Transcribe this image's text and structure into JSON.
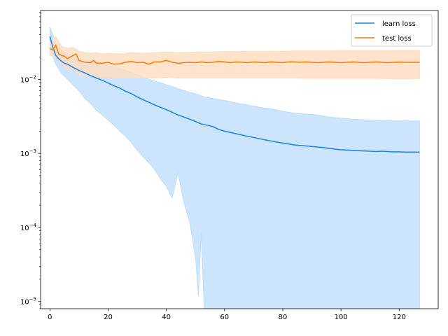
{
  "chart_data": {
    "type": "line",
    "xscale": "linear",
    "yscale": "log",
    "xlim": [
      -3.2,
      133.4
    ],
    "ylim": [
      8e-06,
      0.085
    ],
    "xticks": [
      0,
      20,
      40,
      60,
      80,
      100,
      120
    ],
    "yticks": [
      {
        "value": 1e-05,
        "label_base": "10",
        "label_exp": "−5"
      },
      {
        "value": 0.0001,
        "label_base": "10",
        "label_exp": "−4"
      },
      {
        "value": 0.001,
        "label_base": "10",
        "label_exp": "−3"
      },
      {
        "value": 0.01,
        "label_base": "10",
        "label_exp": "−2"
      }
    ],
    "grid": false,
    "legend": {
      "position": "upper-right"
    },
    "series": [
      {
        "name": "learn loss",
        "color": "#1f88e6",
        "band_color": "#bfdefc",
        "points": [
          [
            0,
            0.038
          ],
          [
            1,
            0.027
          ],
          [
            2,
            0.021
          ],
          [
            3,
            0.019
          ],
          [
            4,
            0.0175
          ],
          [
            5,
            0.0165
          ],
          [
            6,
            0.016
          ],
          [
            8,
            0.0145
          ],
          [
            10,
            0.0132
          ],
          [
            12,
            0.0122
          ],
          [
            14,
            0.0112
          ],
          [
            16,
            0.0104
          ],
          [
            18,
            0.0097
          ],
          [
            20,
            0.0089
          ],
          [
            22,
            0.0082
          ],
          [
            24,
            0.0076
          ],
          [
            26,
            0.0069
          ],
          [
            28,
            0.0064
          ],
          [
            30,
            0.0058
          ],
          [
            32,
            0.0053
          ],
          [
            34,
            0.0049
          ],
          [
            36,
            0.0045
          ],
          [
            38,
            0.0042
          ],
          [
            40,
            0.0039
          ],
          [
            42,
            0.0036
          ],
          [
            44,
            0.0033
          ],
          [
            46,
            0.0031
          ],
          [
            48,
            0.0029
          ],
          [
            50,
            0.0027
          ],
          [
            52,
            0.0025
          ],
          [
            54,
            0.0024
          ],
          [
            56,
            0.0023
          ],
          [
            58,
            0.0021
          ],
          [
            60,
            0.002
          ],
          [
            62,
            0.00192
          ],
          [
            64,
            0.00184
          ],
          [
            66,
            0.00177
          ],
          [
            68,
            0.0017
          ],
          [
            70,
            0.00164
          ],
          [
            72,
            0.00158
          ],
          [
            74,
            0.00152
          ],
          [
            76,
            0.00147
          ],
          [
            78,
            0.00142
          ],
          [
            80,
            0.00138
          ],
          [
            82,
            0.00134
          ],
          [
            84,
            0.0013
          ],
          [
            86,
            0.00128
          ],
          [
            88,
            0.00126
          ],
          [
            90,
            0.00124
          ],
          [
            92,
            0.00122
          ],
          [
            94,
            0.0012
          ],
          [
            96,
            0.00117
          ],
          [
            98,
            0.00114
          ],
          [
            100,
            0.00112
          ],
          [
            102,
            0.00111
          ],
          [
            104,
            0.0011
          ],
          [
            106,
            0.00109
          ],
          [
            108,
            0.00108
          ],
          [
            110,
            0.00107
          ],
          [
            112,
            0.00106
          ],
          [
            114,
            0.00107
          ],
          [
            116,
            0.00106
          ],
          [
            118,
            0.00105
          ],
          [
            120,
            0.00105
          ],
          [
            122,
            0.00104
          ],
          [
            124,
            0.00104
          ],
          [
            126,
            0.00104
          ],
          [
            127,
            0.00104
          ]
        ],
        "band": [
          [
            0,
            0.051,
            0.026
          ],
          [
            2,
            0.031,
            0.016
          ],
          [
            4,
            0.025,
            0.012
          ],
          [
            6,
            0.022,
            0.01
          ],
          [
            8,
            0.02,
            0.0083
          ],
          [
            10,
            0.019,
            0.007
          ],
          [
            12,
            0.0185,
            0.0055
          ],
          [
            14,
            0.018,
            0.0047
          ],
          [
            16,
            0.0175,
            0.0038
          ],
          [
            18,
            0.0165,
            0.0033
          ],
          [
            20,
            0.0155,
            0.0028
          ],
          [
            22,
            0.0147,
            0.0024
          ],
          [
            24,
            0.014,
            0.002
          ],
          [
            26,
            0.0132,
            0.0017
          ],
          [
            28,
            0.0124,
            0.0014
          ],
          [
            30,
            0.0115,
            0.0011
          ],
          [
            32,
            0.0107,
            0.0009
          ],
          [
            34,
            0.01,
            0.00075
          ],
          [
            36,
            0.0095,
            0.0006
          ],
          [
            38,
            0.009,
            0.00045
          ],
          [
            40,
            0.0085,
            0.00036
          ],
          [
            42,
            0.008,
            0.00025
          ],
          [
            44,
            0.0075,
            0.00055
          ],
          [
            46,
            0.0071,
            0.00022
          ],
          [
            48,
            0.0067,
            0.00012
          ],
          [
            50,
            0.0064,
            4e-05
          ],
          [
            51,
            0.0062,
            1.2e-05
          ],
          [
            52,
            0.006,
            8.5e-05
          ],
          [
            53,
            0.0058,
            8e-06
          ],
          [
            56,
            0.0055,
            8e-06
          ],
          [
            60,
            0.0052,
            8e-06
          ],
          [
            64,
            0.0048,
            8e-06
          ],
          [
            68,
            0.0045,
            8e-06
          ],
          [
            72,
            0.0042,
            8e-06
          ],
          [
            76,
            0.004,
            8e-06
          ],
          [
            80,
            0.0037,
            8e-06
          ],
          [
            84,
            0.0035,
            8e-06
          ],
          [
            88,
            0.0034,
            8e-06
          ],
          [
            92,
            0.0033,
            8e-06
          ],
          [
            96,
            0.0031,
            8e-06
          ],
          [
            100,
            0.003,
            8e-06
          ],
          [
            104,
            0.0029,
            8e-06
          ],
          [
            108,
            0.00285,
            8e-06
          ],
          [
            112,
            0.0028,
            8e-06
          ],
          [
            116,
            0.00278,
            8e-06
          ],
          [
            120,
            0.00276,
            8e-06
          ],
          [
            124,
            0.00275,
            8e-06
          ],
          [
            127,
            0.00275,
            8e-06
          ]
        ]
      },
      {
        "name": "test loss",
        "color": "#ff7f0e",
        "band_color": "#ffdcbe",
        "points": [
          [
            0,
            0.026
          ],
          [
            1,
            0.025
          ],
          [
            2,
            0.029
          ],
          [
            3,
            0.022
          ],
          [
            4,
            0.021
          ],
          [
            5,
            0.0205
          ],
          [
            6,
            0.019
          ],
          [
            7,
            0.02
          ],
          [
            8,
            0.021
          ],
          [
            9,
            0.022
          ],
          [
            10,
            0.018
          ],
          [
            11,
            0.0175
          ],
          [
            12,
            0.017
          ],
          [
            14,
            0.0168
          ],
          [
            15,
            0.018
          ],
          [
            16,
            0.0165
          ],
          [
            18,
            0.0165
          ],
          [
            20,
            0.017
          ],
          [
            22,
            0.016
          ],
          [
            24,
            0.0162
          ],
          [
            26,
            0.017
          ],
          [
            28,
            0.0175
          ],
          [
            30,
            0.0168
          ],
          [
            32,
            0.017
          ],
          [
            34,
            0.016
          ],
          [
            36,
            0.0172
          ],
          [
            38,
            0.0172
          ],
          [
            40,
            0.018
          ],
          [
            42,
            0.017
          ],
          [
            44,
            0.0165
          ],
          [
            46,
            0.0168
          ],
          [
            48,
            0.017
          ],
          [
            50,
            0.0168
          ],
          [
            52,
            0.0172
          ],
          [
            54,
            0.0168
          ],
          [
            56,
            0.017
          ],
          [
            58,
            0.0175
          ],
          [
            60,
            0.0172
          ],
          [
            62,
            0.0168
          ],
          [
            64,
            0.0172
          ],
          [
            66,
            0.017
          ],
          [
            68,
            0.0168
          ],
          [
            70,
            0.0172
          ],
          [
            72,
            0.017
          ],
          [
            74,
            0.0168
          ],
          [
            76,
            0.0172
          ],
          [
            78,
            0.017
          ],
          [
            80,
            0.0168
          ],
          [
            82,
            0.0172
          ],
          [
            84,
            0.0172
          ],
          [
            86,
            0.017
          ],
          [
            88,
            0.0172
          ],
          [
            90,
            0.017
          ],
          [
            92,
            0.0168
          ],
          [
            94,
            0.017
          ],
          [
            96,
            0.0172
          ],
          [
            98,
            0.017
          ],
          [
            100,
            0.0168
          ],
          [
            102,
            0.017
          ],
          [
            104,
            0.0172
          ],
          [
            106,
            0.017
          ],
          [
            108,
            0.0168
          ],
          [
            110,
            0.017
          ],
          [
            112,
            0.0172
          ],
          [
            114,
            0.017
          ],
          [
            116,
            0.0168
          ],
          [
            118,
            0.017
          ],
          [
            120,
            0.0171
          ],
          [
            122,
            0.017
          ],
          [
            124,
            0.017
          ],
          [
            127,
            0.017
          ]
        ],
        "band": [
          [
            0,
            0.031,
            0.021
          ],
          [
            2,
            0.038,
            0.02
          ],
          [
            4,
            0.028,
            0.016
          ],
          [
            6,
            0.026,
            0.014
          ],
          [
            8,
            0.027,
            0.0135
          ],
          [
            10,
            0.024,
            0.0118
          ],
          [
            12,
            0.023,
            0.0112
          ],
          [
            14,
            0.0225,
            0.011
          ],
          [
            16,
            0.023,
            0.0108
          ],
          [
            18,
            0.022,
            0.0106
          ],
          [
            20,
            0.0225,
            0.0106
          ],
          [
            24,
            0.022,
            0.0104
          ],
          [
            28,
            0.023,
            0.0105
          ],
          [
            32,
            0.0225,
            0.0104
          ],
          [
            36,
            0.023,
            0.0104
          ],
          [
            40,
            0.0235,
            0.0106
          ],
          [
            44,
            0.023,
            0.0104
          ],
          [
            48,
            0.0232,
            0.0104
          ],
          [
            52,
            0.0235,
            0.0104
          ],
          [
            56,
            0.0235,
            0.0104
          ],
          [
            60,
            0.0238,
            0.0104
          ],
          [
            64,
            0.0238,
            0.0104
          ],
          [
            68,
            0.024,
            0.0104
          ],
          [
            72,
            0.024,
            0.0104
          ],
          [
            76,
            0.024,
            0.0104
          ],
          [
            80,
            0.024,
            0.0104
          ],
          [
            84,
            0.0242,
            0.0104
          ],
          [
            88,
            0.0242,
            0.0103
          ],
          [
            92,
            0.0242,
            0.0103
          ],
          [
            96,
            0.0242,
            0.0103
          ],
          [
            100,
            0.0244,
            0.0103
          ],
          [
            104,
            0.0244,
            0.0103
          ],
          [
            108,
            0.0245,
            0.0103
          ],
          [
            112,
            0.0245,
            0.0103
          ],
          [
            116,
            0.0245,
            0.0102
          ],
          [
            120,
            0.0246,
            0.0102
          ],
          [
            124,
            0.0246,
            0.0102
          ],
          [
            127,
            0.0246,
            0.0102
          ]
        ]
      }
    ]
  }
}
